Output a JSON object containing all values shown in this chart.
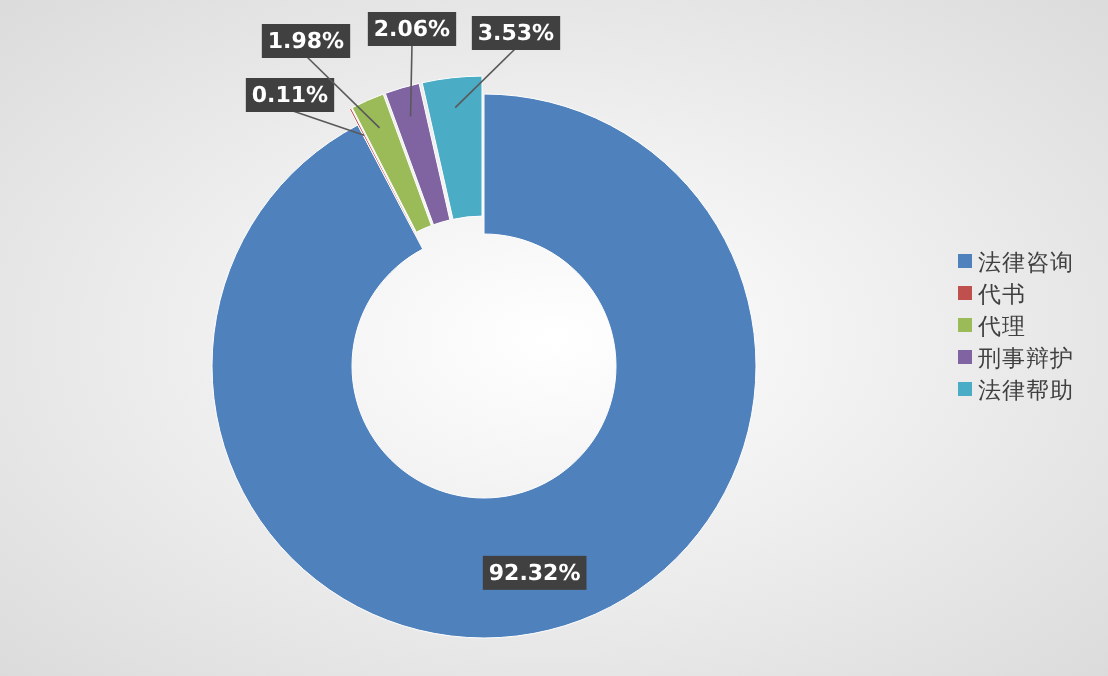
{
  "chart_data": {
    "type": "donut",
    "categories": [
      "法律咨询",
      "代书",
      "代理",
      "刑事辩护",
      "法律帮助"
    ],
    "values": [
      92.32,
      0.11,
      1.98,
      2.06,
      3.53
    ],
    "colors": [
      "#4f81bd",
      "#c0504d",
      "#9bbb59",
      "#8064a2",
      "#4bacc6"
    ],
    "value_labels": [
      "92.32%",
      "0.11%",
      "1.98%",
      "2.06%",
      "3.53%"
    ],
    "legend": "right"
  }
}
